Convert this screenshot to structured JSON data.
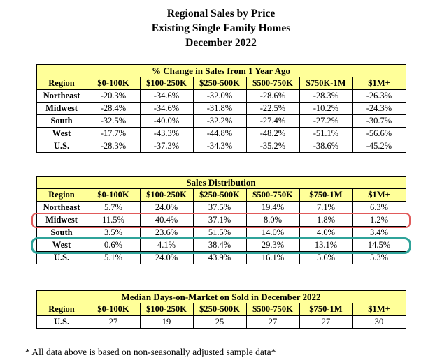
{
  "title": {
    "line1": "Regional Sales by Price",
    "line2": "Existing Single Family Homes",
    "line3": "December 2022"
  },
  "colors": {
    "table_header_bg": "#FFFF99",
    "table_border": "#000000",
    "midwest_highlight": "#E05A5A",
    "west_highlight": "#2FA39A"
  },
  "tables": [
    {
      "title": "% Change in Sales from 1 Year Ago",
      "headers": [
        "Region",
        "$0-100K",
        "$100-250K",
        "$250-500K",
        "$500-750K",
        "$750K-1M",
        "$1M+"
      ],
      "rows": [
        {
          "cells": [
            "Northeast",
            "-20.3%",
            "-34.6%",
            "-32.0%",
            "-28.6%",
            "-28.3%",
            "-26.3%"
          ]
        },
        {
          "cells": [
            "Midwest",
            "-28.4%",
            "-34.6%",
            "-31.8%",
            "-22.5%",
            "-10.2%",
            "-24.3%"
          ]
        },
        {
          "cells": [
            "South",
            "-32.5%",
            "-40.0%",
            "-32.2%",
            "-27.4%",
            "-27.2%",
            "-30.7%"
          ]
        },
        {
          "cells": [
            "West",
            "-17.7%",
            "-43.3%",
            "-44.8%",
            "-48.2%",
            "-51.1%",
            "-56.6%"
          ]
        },
        {
          "cells": [
            "U.S.",
            "-28.3%",
            "-37.3%",
            "-34.3%",
            "-35.2%",
            "-38.6%",
            "-45.2%"
          ]
        }
      ]
    },
    {
      "title": "Sales Distribution",
      "headers": [
        "Region",
        "$0-100K",
        "$100-250K",
        "$250-500K",
        "$500-750K",
        "$750-1M",
        "$1M+"
      ],
      "rows": [
        {
          "cells": [
            "Northeast",
            "5.7%",
            "24.0%",
            "37.5%",
            "19.4%",
            "7.1%",
            "6.3%"
          ]
        },
        {
          "cells": [
            "Midwest",
            "11.5%",
            "40.4%",
            "37.1%",
            "8.0%",
            "1.8%",
            "1.2%"
          ],
          "highlight": {
            "name": "midwest-row-highlight",
            "color": "#E05A5A",
            "width": 2
          }
        },
        {
          "cells": [
            "South",
            "3.5%",
            "23.6%",
            "51.5%",
            "14.0%",
            "4.0%",
            "3.4%"
          ]
        },
        {
          "cells": [
            "West",
            "0.6%",
            "4.1%",
            "38.4%",
            "29.3%",
            "13.1%",
            "14.5%"
          ],
          "highlight": {
            "name": "west-row-highlight",
            "color": "#2FA39A",
            "width": 3
          }
        },
        {
          "cells": [
            "U.S.",
            "5.1%",
            "24.0%",
            "43.9%",
            "16.1%",
            "5.6%",
            "5.3%"
          ]
        }
      ]
    },
    {
      "title": "Median Days-on-Market on Sold in December 2022",
      "headers": [
        "Region",
        "$0-100K",
        "$100-250K",
        "$250-500K",
        "$500-750K",
        "$750-1M",
        "$1M+"
      ],
      "rows": [
        {
          "cells": [
            "U.S.",
            "27",
            "19",
            "25",
            "27",
            "27",
            "30"
          ]
        }
      ]
    }
  ],
  "footnote": "* All data above is based on non-seasonally adjusted sample data*"
}
